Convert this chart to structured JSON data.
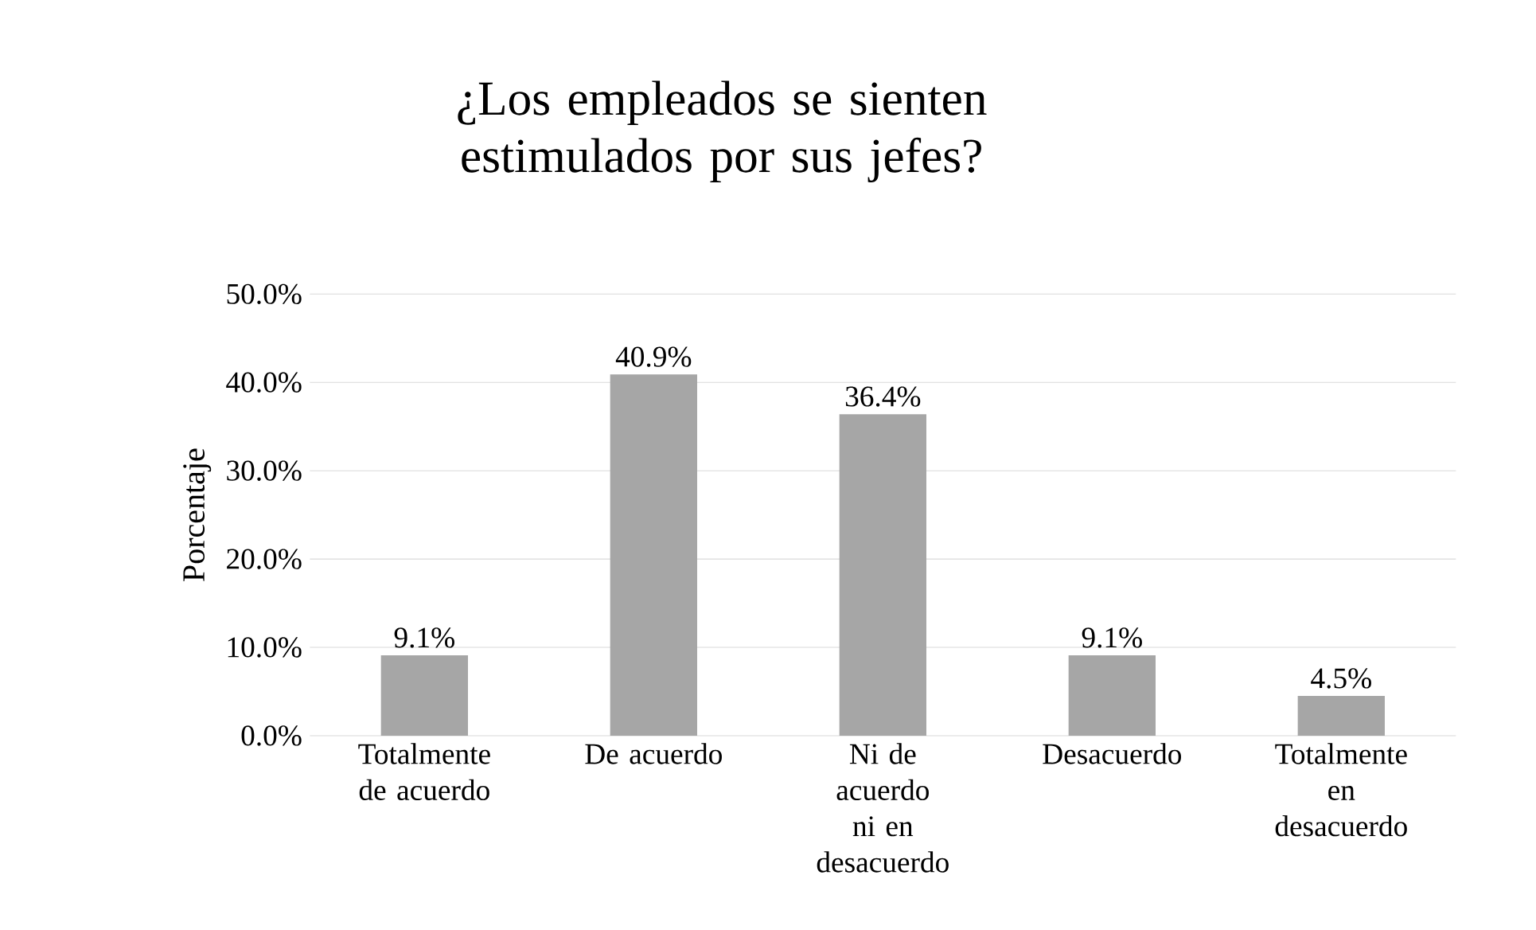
{
  "chart_data": {
    "type": "bar",
    "title": "¿Los empleados se sienten estimulados por sus jefes?",
    "ylabel": "Porcentaje",
    "categories": [
      "Totalmente de acuerdo",
      "De acuerdo",
      "Ni de acuerdo ni en desacuerdo",
      "Desacuerdo",
      "Totalmente en desacuerdo"
    ],
    "values": [
      9.1,
      40.9,
      36.4,
      9.1,
      4.5
    ],
    "value_labels": [
      "9.1%",
      "40.9%",
      "36.4%",
      "9.1%",
      "4.5%"
    ],
    "color": "#a6a6a6",
    "ylim": [
      0,
      50
    ],
    "yticks": [
      {
        "value": 0,
        "label": "0.0%"
      },
      {
        "value": 10,
        "label": "10.0%"
      },
      {
        "value": 20,
        "label": "20.0%"
      },
      {
        "value": 30,
        "label": "30.0%"
      },
      {
        "value": 40,
        "label": "40.0%"
      },
      {
        "value": 50,
        "label": "50.0%"
      }
    ],
    "grid": "y"
  }
}
